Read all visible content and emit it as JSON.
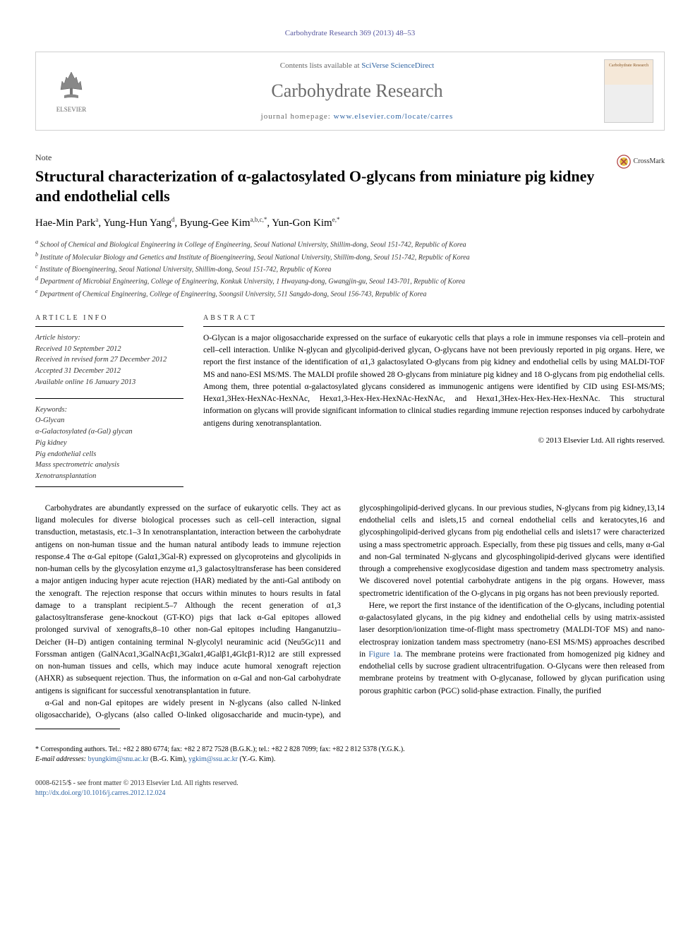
{
  "citation": "Carbohydrate Research 369 (2013) 48–53",
  "masthead": {
    "contents_prefix": "Contents lists available at ",
    "contents_link": "SciVerse ScienceDirect",
    "journal": "Carbohydrate Research",
    "homepage_prefix": "journal homepage: ",
    "homepage_url": "www.elsevier.com/locate/carres",
    "publisher": "ELSEVIER",
    "cover_label": "Carbohydrate Research"
  },
  "note_label": "Note",
  "title": "Structural characterization of α-galactosylated O-glycans from miniature pig kidney and endothelial cells",
  "crossmark": "CrossMark",
  "authors_html": "Hae-Min Park<sup>a</sup>, Yung-Hun Yang<sup>d</sup>, Byung-Gee Kim<sup>a,b,c,*</sup>, Yun-Gon Kim<sup>e,*</sup>",
  "affiliations": [
    "a School of Chemical and Biological Engineering in College of Engineering, Seoul National University, Shillim-dong, Seoul 151-742, Republic of Korea",
    "b Institute of Molecular Biology and Genetics and Institute of Bioengineering, Seoul National University, Shillim-dong, Seoul 151-742, Republic of Korea",
    "c Institute of Bioengineering, Seoul National University, Shillim-dong, Seoul 151-742, Republic of Korea",
    "d Department of Microbial Engineering, College of Engineering, Konkuk University, 1 Hwayang-dong, Gwangjin-gu, Seoul 143-701, Republic of Korea",
    "e Department of Chemical Engineering, College of Engineering, Soongsil University, 511 Sangdo-dong, Seoul 156-743, Republic of Korea"
  ],
  "article_info_header": "ARTICLE INFO",
  "abstract_header": "ABSTRACT",
  "history": {
    "label": "Article history:",
    "received": "Received 10 September 2012",
    "revised": "Received in revised form 27 December 2012",
    "accepted": "Accepted 31 December 2012",
    "online": "Available online 16 January 2013"
  },
  "keywords": {
    "label": "Keywords:",
    "items": [
      "O-Glycan",
      "α-Galactosylated (α-Gal) glycan",
      "Pig kidney",
      "Pig endothelial cells",
      "Mass spectrometric analysis",
      "Xenotransplantation"
    ]
  },
  "abstract": "O-Glycan is a major oligosaccharide expressed on the surface of eukaryotic cells that plays a role in immune responses via cell–protein and cell–cell interaction. Unlike N-glycan and glycolipid-derived glycan, O-glycans have not been previously reported in pig organs. Here, we report the first instance of the identification of α1,3 galactosylated O-glycans from pig kidney and endothelial cells by using MALDI-TOF MS and nano-ESI MS/MS. The MALDI profile showed 28 O-glycans from miniature pig kidney and 18 O-glycans from pig endothelial cells. Among them, three potential α-galactosylated glycans considered as immunogenic antigens were identified by CID using ESI-MS/MS; Hexα1,3Hex-HexNAc-HexNAc, Hexα1,3-Hex-Hex-HexNAc-HexNAc, and Hexα1,3Hex-Hex-Hex-Hex-HexNAc. This structural information on glycans will provide significant information to clinical studies regarding immune rejection responses induced by carbohydrate antigens during xenotransplantation.",
  "copyright": "© 2013 Elsevier Ltd. All rights reserved.",
  "body": {
    "p1": "Carbohydrates are abundantly expressed on the surface of eukaryotic cells. They act as ligand molecules for diverse biological processes such as cell–cell interaction, signal transduction, metastasis, etc.1–3 In xenotransplantation, interaction between the carbohydrate antigens on non-human tissue and the human natural antibody leads to immune rejection response.4 The α-Gal epitope (Galα1,3Gal-R) expressed on glycoproteins and glycolipids in non-human cells by the glycosylation enzyme α1,3 galactosyltransferase has been considered a major antigen inducing hyper acute rejection (HAR) mediated by the anti-Gal antibody on the xenograft. The rejection response that occurs within minutes to hours results in fatal damage to a transplant recipient.5–7 Although the recent generation of α1,3 galactosyltransferase gene-knockout (GT-KO) pigs that lack α-Gal epitopes allowed prolonged survival of xenografts,8–10 other non-Gal epitopes including Hanganutziu–Deicher (H–D) antigen containing terminal N-glycolyl neuraminic acid (Neu5Gc)11 and Forssman antigen (GalNAcα1,3GalNAcβ1,3Galα1,4Galβ1,4Glcβ1-R)12 are still expressed on non-human tissues and cells, which may induce acute humoral xenograft rejection (AHXR) as subsequent rejection. Thus, the information on α-Gal and non-Gal carbohydrate antigens is significant for successful xenotransplantation in future.",
    "p2": "α-Gal and non-Gal epitopes are widely present in N-glycans (also called N-linked oligosaccharide), O-glycans (also called O-linked oligosaccharide and mucin-type), and glycosphingolipid-derived glycans. In our previous studies, N-glycans from pig kidney,13,14 endothelial cells and islets,15 and corneal endothelial cells and keratocytes,16 and glycosphingolipid-derived glycans from pig endothelial cells and islets17 were characterized using a mass spectrometric approach. Especially, from these pig tissues and cells, many α-Gal and non-Gal terminated N-glycans and glycosphingolipid-derived glycans were identified through a comprehensive exoglycosidase digestion and tandem mass spectrometry analysis. We discovered novel potential carbohydrate antigens in the pig organs. However, mass spectrometric identification of the O-glycans in pig organs has not been previously reported.",
    "p3_pre": "Here, we report the first instance of the identification of the O-glycans, including potential α-galactosylated glycans, in the pig kidney and endothelial cells by using matrix-assisted laser desorption/ionization time-of-flight mass spectrometry (MALDI-TOF MS) and nano-electrospray ionization tandem mass spectrometry (nano-ESI MS/MS) approaches described in ",
    "p3_fig": "Figure 1",
    "p3_post": "a. The membrane proteins were fractionated from homogenized pig kidney and endothelial cells by sucrose gradient ultracentrifugation. O-Glycans were then released from membrane proteins by treatment with O-glycanase, followed by glycan purification using porous graphitic carbon (PGC) solid-phase extraction. Finally, the purified"
  },
  "footer": {
    "corresponding": "* Corresponding authors. Tel.: +82 2 880 6774; fax: +82 2 872 7528 (B.G.K.); tel.: +82 2 828 7099; fax: +82 2 812 5378 (Y.G.K.).",
    "email_label": "E-mail addresses: ",
    "email1": "byungkim@snu.ac.kr",
    "email1_who": " (B.-G. Kim), ",
    "email2": "ygkim@ssu.ac.kr",
    "email2_who": " (Y.-G. Kim)."
  },
  "issn_line": "0008-6215/$ - see front matter © 2013 Elsevier Ltd. All rights reserved.",
  "doi": "http://dx.doi.org/10.1016/j.carres.2012.12.024",
  "colors": {
    "link": "#3165a3",
    "citation": "#5858a0",
    "journal": "#6b6b6b",
    "border": "#d0d0d0"
  }
}
